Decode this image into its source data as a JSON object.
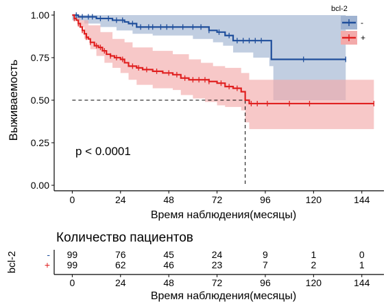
{
  "chart_data": {
    "type": "line",
    "subtype": "kaplan-meier",
    "title": "",
    "xlabel": "Время наблюдения(месяцы)",
    "ylabel": "Выживаемость",
    "xlim": [
      -9,
      155
    ],
    "ylim": [
      0,
      1
    ],
    "x_ticks": [
      0,
      24,
      48,
      72,
      96,
      120,
      144
    ],
    "y_ticks": [
      0,
      0.25,
      0.5,
      0.75,
      1
    ],
    "y_tick_labels": [
      "0.00",
      "0.25",
      "0.50",
      "0.75",
      "1.00"
    ],
    "grid": false,
    "legend": {
      "title": "bcl-2",
      "position": "top-right"
    },
    "annotation": "p < 0.0001",
    "median_line": {
      "y": 0.5,
      "x": 86
    },
    "series": [
      {
        "name": "-",
        "color": "#1f4e9b",
        "band_color": "#9fb3d1",
        "steps": [
          [
            0,
            1.0
          ],
          [
            3,
            0.99
          ],
          [
            12,
            0.98
          ],
          [
            20,
            0.97
          ],
          [
            26,
            0.96
          ],
          [
            28,
            0.95
          ],
          [
            32,
            0.93
          ],
          [
            68,
            0.91
          ],
          [
            72,
            0.9
          ],
          [
            76,
            0.88
          ],
          [
            80,
            0.85
          ],
          [
            98,
            0.85
          ],
          [
            99,
            0.74
          ],
          [
            136,
            0.74
          ]
        ],
        "ci_upper": [
          [
            0,
            1.0
          ],
          [
            136,
            1.0
          ]
        ],
        "ci_lower": [
          [
            0,
            0.97
          ],
          [
            6,
            0.95
          ],
          [
            14,
            0.93
          ],
          [
            22,
            0.91
          ],
          [
            30,
            0.89
          ],
          [
            40,
            0.88
          ],
          [
            60,
            0.86
          ],
          [
            70,
            0.84
          ],
          [
            75,
            0.82
          ],
          [
            80,
            0.78
          ],
          [
            90,
            0.75
          ],
          [
            98,
            0.7
          ],
          [
            100,
            0.5
          ],
          [
            136,
            0.5
          ]
        ],
        "censored": [
          2,
          5,
          8,
          10,
          14,
          18,
          22,
          25,
          30,
          34,
          38,
          40,
          44,
          47,
          50,
          55,
          60,
          64,
          68,
          73,
          78,
          82,
          85,
          88,
          91,
          94,
          115,
          136
        ]
      },
      {
        "name": "+",
        "color": "#e02020",
        "band_color": "#f3aaaa",
        "steps": [
          [
            0,
            1.0
          ],
          [
            1,
            0.98
          ],
          [
            2,
            0.97
          ],
          [
            3,
            0.95
          ],
          [
            4,
            0.93
          ],
          [
            5,
            0.91
          ],
          [
            6,
            0.89
          ],
          [
            7,
            0.87
          ],
          [
            8,
            0.86
          ],
          [
            9,
            0.84
          ],
          [
            11,
            0.82
          ],
          [
            13,
            0.81
          ],
          [
            15,
            0.79
          ],
          [
            17,
            0.77
          ],
          [
            19,
            0.76
          ],
          [
            21,
            0.75
          ],
          [
            24,
            0.74
          ],
          [
            26,
            0.72
          ],
          [
            28,
            0.7
          ],
          [
            32,
            0.69
          ],
          [
            35,
            0.68
          ],
          [
            40,
            0.67
          ],
          [
            45,
            0.66
          ],
          [
            50,
            0.65
          ],
          [
            54,
            0.63
          ],
          [
            58,
            0.62
          ],
          [
            68,
            0.61
          ],
          [
            72,
            0.6
          ],
          [
            76,
            0.58
          ],
          [
            80,
            0.57
          ],
          [
            84,
            0.55
          ],
          [
            86,
            0.5
          ],
          [
            88,
            0.48
          ],
          [
            150,
            0.48
          ]
        ],
        "ci_upper": [
          [
            0,
            1.0
          ],
          [
            4,
            0.97
          ],
          [
            8,
            0.94
          ],
          [
            14,
            0.9
          ],
          [
            20,
            0.86
          ],
          [
            26,
            0.84
          ],
          [
            30,
            0.81
          ],
          [
            40,
            0.79
          ],
          [
            50,
            0.77
          ],
          [
            58,
            0.74
          ],
          [
            64,
            0.72
          ],
          [
            70,
            0.7
          ],
          [
            76,
            0.69
          ],
          [
            84,
            0.66
          ],
          [
            88,
            0.62
          ],
          [
            150,
            0.62
          ]
        ],
        "ci_lower": [
          [
            0,
            1.0
          ],
          [
            3,
            0.93
          ],
          [
            6,
            0.86
          ],
          [
            9,
            0.8
          ],
          [
            12,
            0.76
          ],
          [
            16,
            0.72
          ],
          [
            20,
            0.69
          ],
          [
            24,
            0.66
          ],
          [
            28,
            0.62
          ],
          [
            32,
            0.59
          ],
          [
            40,
            0.57
          ],
          [
            50,
            0.56
          ],
          [
            54,
            0.53
          ],
          [
            60,
            0.51
          ],
          [
            66,
            0.49
          ],
          [
            72,
            0.47
          ],
          [
            76,
            0.46
          ],
          [
            84,
            0.44
          ],
          [
            86,
            0.37
          ],
          [
            88,
            0.33
          ],
          [
            150,
            0.33
          ]
        ],
        "censored": [
          1,
          3,
          5,
          7,
          9,
          12,
          14,
          16,
          19,
          22,
          25,
          30,
          33,
          37,
          42,
          48,
          52,
          56,
          60,
          63,
          66,
          68,
          74,
          78,
          82,
          89,
          92,
          97,
          108,
          118,
          150
        ]
      }
    ]
  },
  "risk_table": {
    "title": "Количество пациентов",
    "ylabel": "bcl-2",
    "xlabel": "Время наблюдения(месяцы)",
    "x_ticks": [
      0,
      24,
      48,
      72,
      96,
      120,
      144
    ],
    "rows": [
      {
        "label": "-",
        "color": "#1f4e9b",
        "counts": [
          99,
          76,
          45,
          24,
          9,
          1,
          0
        ]
      },
      {
        "label": "+",
        "color": "#e02020",
        "counts": [
          99,
          62,
          46,
          23,
          7,
          2,
          1
        ]
      }
    ]
  }
}
